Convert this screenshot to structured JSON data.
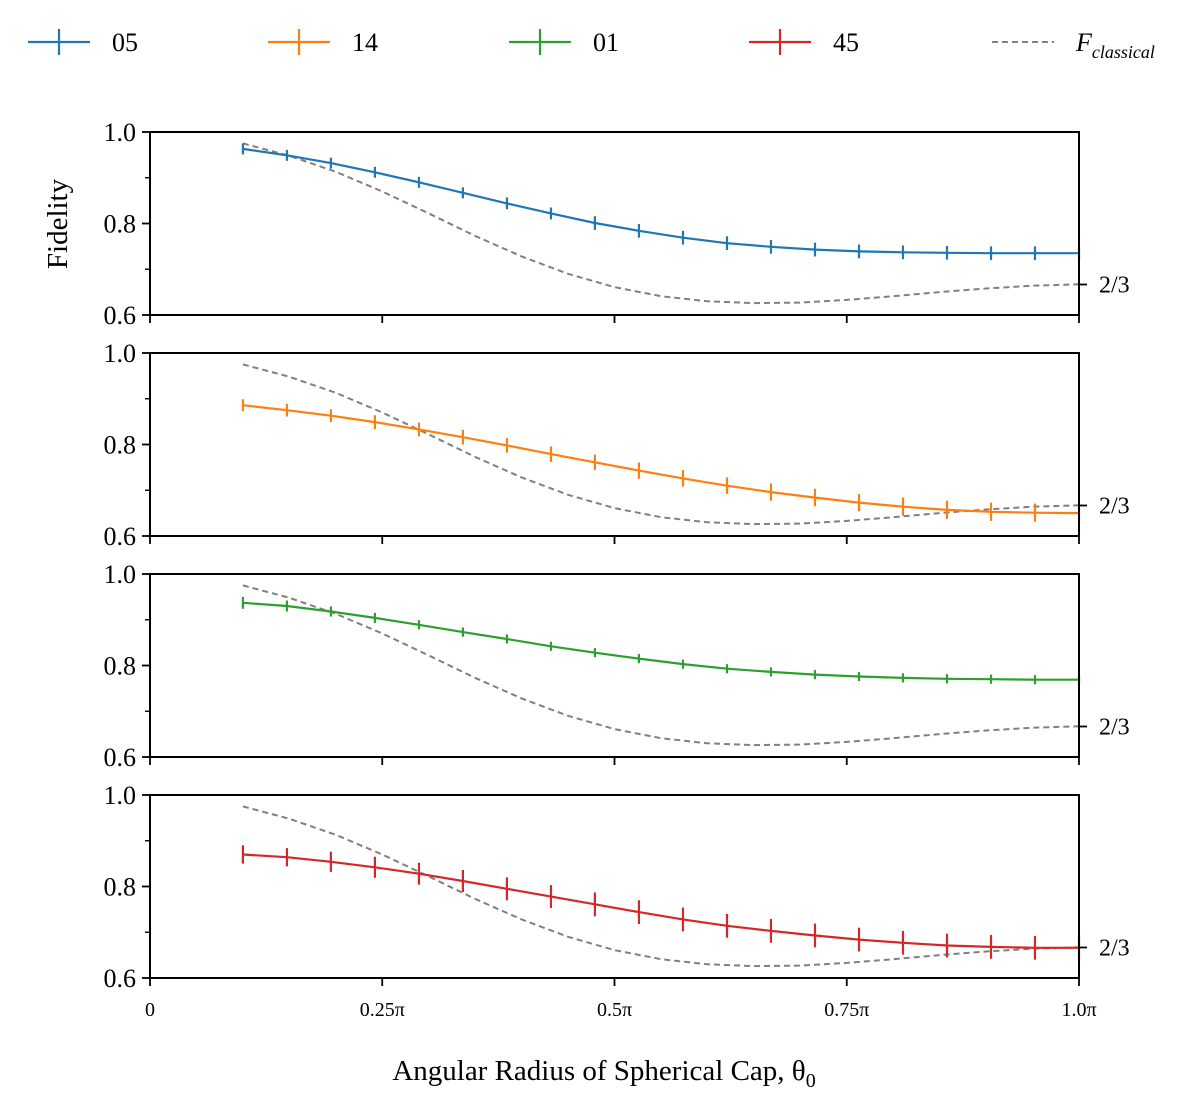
{
  "chart_data": {
    "type": "line",
    "ylabel": "Fidelity",
    "xlabel": "Angular Radius of Spherical Cap, θ",
    "xlabel_subscript": "0",
    "xlim": [
      0,
      1.0
    ],
    "ylim": [
      0.6,
      1.0
    ],
    "x_units": "π",
    "x_ticks": [
      {
        "value": 0,
        "label": "0"
      },
      {
        "value": 0.25,
        "label": "0.25π"
      },
      {
        "value": 0.5,
        "label": "0.5π"
      },
      {
        "value": 0.75,
        "label": "0.75π"
      },
      {
        "value": 1.0,
        "label": "1.0π"
      }
    ],
    "y_ticks": [
      {
        "value": 0.6,
        "label": "0.6"
      },
      {
        "value": 0.8,
        "label": "0.8"
      },
      {
        "value": 1.0,
        "label": "1.0"
      }
    ],
    "y_minor_ticks": [
      0.7,
      0.9
    ],
    "right_tick": {
      "value": 0.6667,
      "label": "2/3"
    },
    "legend": {
      "placement": "top",
      "entries": [
        {
          "label": "05",
          "color": "#1f77b4",
          "style": "errorbar"
        },
        {
          "label": "14",
          "color": "#ff7f0e",
          "style": "errorbar"
        },
        {
          "label": "01",
          "color": "#2ca02c",
          "style": "errorbar"
        },
        {
          "label": "45",
          "color": "#d62728",
          "style": "errorbar"
        },
        {
          "label": "F",
          "subscript": "classical",
          "color": "#808080",
          "style": "dashed"
        }
      ]
    },
    "x": [
      0.1,
      0.1474,
      0.1947,
      0.2421,
      0.2895,
      0.3368,
      0.3842,
      0.4316,
      0.4789,
      0.5263,
      0.5737,
      0.6211,
      0.6684,
      0.7158,
      0.7632,
      0.8105,
      0.8579,
      0.9053,
      0.9526,
      1.0
    ],
    "classical": {
      "name": "F_classical",
      "color": "#808080",
      "x": [
        0.1,
        0.15,
        0.2,
        0.25,
        0.3,
        0.35,
        0.4,
        0.45,
        0.5,
        0.55,
        0.6,
        0.65,
        0.7,
        0.75,
        0.8,
        0.85,
        0.9,
        0.95,
        1.0
      ],
      "values": [
        0.975,
        0.948,
        0.913,
        0.87,
        0.822,
        0.773,
        0.728,
        0.69,
        0.661,
        0.641,
        0.63,
        0.626,
        0.627,
        0.633,
        0.641,
        0.65,
        0.658,
        0.664,
        0.667
      ]
    },
    "series": [
      {
        "name": "05",
        "color": "#1f77b4",
        "values": [
          0.963,
          0.949,
          0.932,
          0.912,
          0.89,
          0.867,
          0.844,
          0.822,
          0.801,
          0.784,
          0.769,
          0.757,
          0.749,
          0.743,
          0.739,
          0.737,
          0.736,
          0.735,
          0.735,
          0.735
        ],
        "errors": [
          0.012,
          0.012,
          0.012,
          0.012,
          0.012,
          0.012,
          0.013,
          0.013,
          0.015,
          0.015,
          0.015,
          0.015,
          0.015,
          0.015,
          0.015,
          0.015,
          0.015,
          0.015,
          0.015,
          0.015
        ]
      },
      {
        "name": "14",
        "color": "#ff7f0e",
        "values": [
          0.886,
          0.875,
          0.863,
          0.849,
          0.833,
          0.816,
          0.798,
          0.779,
          0.761,
          0.743,
          0.726,
          0.71,
          0.696,
          0.684,
          0.673,
          0.664,
          0.657,
          0.653,
          0.651,
          0.65
        ],
        "errors": [
          0.013,
          0.014,
          0.014,
          0.015,
          0.015,
          0.016,
          0.016,
          0.017,
          0.017,
          0.018,
          0.018,
          0.018,
          0.019,
          0.019,
          0.019,
          0.02,
          0.02,
          0.02,
          0.02,
          0.02
        ]
      },
      {
        "name": "01",
        "color": "#2ca02c",
        "values": [
          0.937,
          0.93,
          0.918,
          0.904,
          0.889,
          0.873,
          0.858,
          0.842,
          0.828,
          0.815,
          0.803,
          0.793,
          0.786,
          0.78,
          0.776,
          0.773,
          0.771,
          0.77,
          0.769,
          0.769
        ],
        "errors": [
          0.013,
          0.012,
          0.011,
          0.011,
          0.01,
          0.01,
          0.01,
          0.01,
          0.01,
          0.01,
          0.01,
          0.01,
          0.01,
          0.01,
          0.01,
          0.01,
          0.01,
          0.01,
          0.01,
          0.01
        ]
      },
      {
        "name": "45",
        "color": "#d62728",
        "values": [
          0.87,
          0.864,
          0.854,
          0.842,
          0.828,
          0.812,
          0.795,
          0.778,
          0.761,
          0.744,
          0.728,
          0.714,
          0.703,
          0.693,
          0.684,
          0.677,
          0.671,
          0.668,
          0.666,
          0.666
        ],
        "errors": [
          0.02,
          0.02,
          0.022,
          0.023,
          0.024,
          0.024,
          0.025,
          0.025,
          0.026,
          0.026,
          0.026,
          0.026,
          0.026,
          0.026,
          0.026,
          0.026,
          0.026,
          0.026,
          0.026,
          0.026
        ]
      }
    ]
  }
}
